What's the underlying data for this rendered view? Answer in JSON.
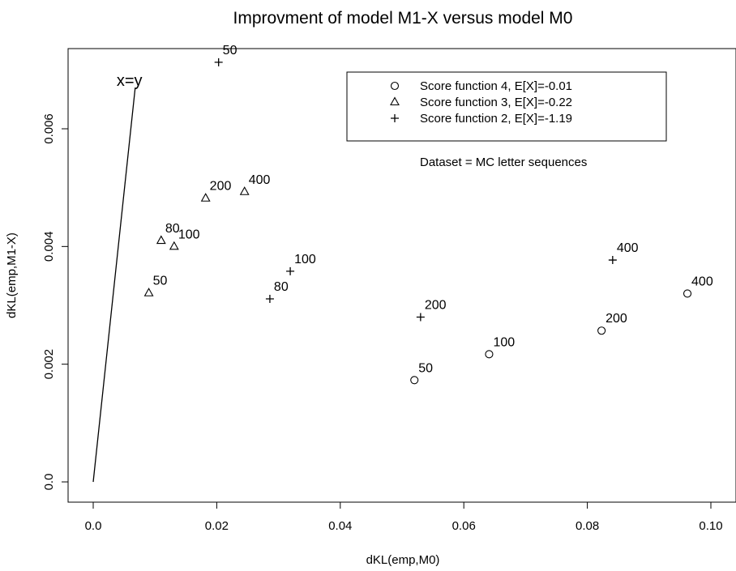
{
  "chart_data": {
    "type": "scatter",
    "title": "Improvment of model M1-X versus model M0",
    "xlabel": "dKL(emp,M0)",
    "ylabel": "dKL(emp,M1-X)",
    "xlim": [
      0.0,
      0.1
    ],
    "ylim": [
      0.0,
      0.007
    ],
    "x_ticks": [
      "0.0",
      "0.02",
      "0.04",
      "0.06",
      "0.08",
      "0.10"
    ],
    "x_tick_values": [
      0.0,
      0.02,
      0.04,
      0.06,
      0.08,
      0.1
    ],
    "y_ticks": [
      "0.0",
      "0.002",
      "0.004",
      "0.006"
    ],
    "y_tick_values": [
      0.0,
      0.002,
      0.004,
      0.006
    ],
    "grid": false,
    "legend_position": "top-right",
    "legend_note": "Dataset = MC letter sequences",
    "reference_line": {
      "label": "x=y",
      "from": [
        0.0,
        0.0
      ],
      "to": [
        0.0068,
        0.0067
      ]
    },
    "series": [
      {
        "name": "Score function 4, E[X]=-0.01",
        "marker": "circle",
        "points": [
          {
            "x": 0.052,
            "y": 0.00173,
            "label": "50"
          },
          {
            "x": 0.0641,
            "y": 0.00217,
            "label": "100"
          },
          {
            "x": 0.0823,
            "y": 0.00257,
            "label": "200"
          },
          {
            "x": 0.0962,
            "y": 0.0032,
            "label": "400"
          }
        ]
      },
      {
        "name": "Score function 3, E[X]=-0.22",
        "marker": "triangle",
        "points": [
          {
            "x": 0.009,
            "y": 0.00321,
            "label": "50"
          },
          {
            "x": 0.011,
            "y": 0.0041,
            "label": "80"
          },
          {
            "x": 0.0131,
            "y": 0.004,
            "label": "100"
          },
          {
            "x": 0.0182,
            "y": 0.00482,
            "label": "200"
          },
          {
            "x": 0.0245,
            "y": 0.00493,
            "label": "400"
          }
        ]
      },
      {
        "name": "Score function 2, E[X]=-1.19",
        "marker": "plus",
        "points": [
          {
            "x": 0.0203,
            "y": 0.00713,
            "label": "50"
          },
          {
            "x": 0.0286,
            "y": 0.00311,
            "label": "80"
          },
          {
            "x": 0.0319,
            "y": 0.00358,
            "label": "100"
          },
          {
            "x": 0.053,
            "y": 0.0028,
            "label": "200"
          },
          {
            "x": 0.0841,
            "y": 0.00377,
            "label": "400"
          }
        ]
      }
    ]
  }
}
